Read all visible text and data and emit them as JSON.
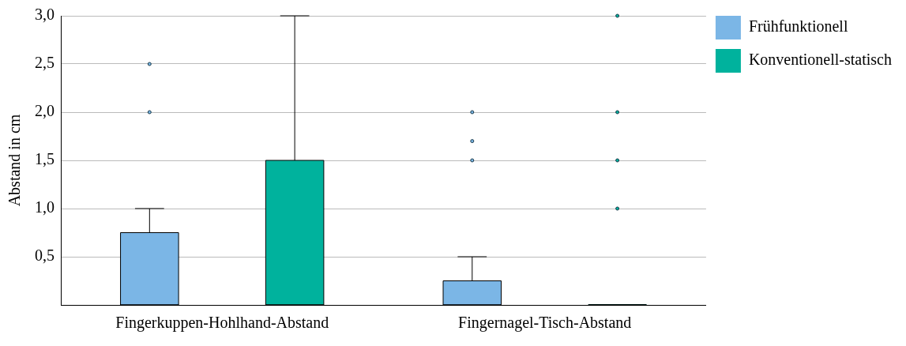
{
  "chart_data": {
    "type": "box",
    "ylabel": "Abstand in cm",
    "categories": [
      "Fingerkuppen-Hohlhand-Abstand",
      "Fingernagel-Tisch-Abstand"
    ],
    "ylim": [
      0,
      3
    ],
    "yticks": [
      {
        "value": 0.5,
        "label": "0,5"
      },
      {
        "value": 1,
        "label": "1,0"
      },
      {
        "value": 1.5,
        "label": "1,5"
      },
      {
        "value": 2,
        "label": "2,0"
      },
      {
        "value": 2.5,
        "label": "2,5"
      },
      {
        "value": 3,
        "label": "3,0"
      }
    ],
    "grid": "y",
    "legend": "top right",
    "marker": "circle",
    "series": [
      {
        "name": "Frühfunktionell",
        "color": "#7bb6e6",
        "boxes": [
          {
            "low": 0,
            "q1": 0,
            "median": 0,
            "q3": 0.75,
            "high": 1,
            "outliers": [
              2,
              2.5
            ]
          },
          {
            "low": 0,
            "q1": 0,
            "median": 0,
            "q3": 0.25,
            "high": 0.5,
            "outliers": [
              1.5,
              1.7,
              2
            ]
          }
        ]
      },
      {
        "name": "Konventionell-statisch",
        "color": "#00b29d",
        "boxes": [
          {
            "low": 0,
            "q1": 0,
            "median": 0,
            "q3": 1.5,
            "high": 3
          },
          {
            "low": 0,
            "q1": 0,
            "median": 0,
            "q3": 0,
            "high": 0,
            "outliers": [
              1,
              1.5,
              2,
              3
            ]
          }
        ]
      }
    ]
  }
}
